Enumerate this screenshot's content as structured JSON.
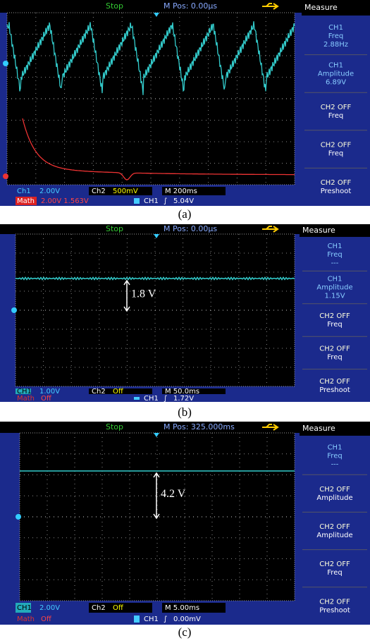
{
  "panels": [
    {
      "label": "(a)",
      "top_bar": {
        "status": "Stop",
        "mpos": "M Pos: 0.00µs"
      },
      "bottom": {
        "ch1": "Ch1",
        "ch1_scale": "2.00V",
        "ch2": "Ch2",
        "ch2_scale": "500mV",
        "time": "M 200ms",
        "math": "Math",
        "math_value": "2.00V 1.563V",
        "trig_src": "CH1",
        "trig_level": "5.04V"
      },
      "menu": {
        "title": "Measure",
        "items": [
          [
            "CH1",
            "Freq",
            "2.88Hz"
          ],
          [
            "CH1",
            "Amplitude",
            "6.89V"
          ],
          [
            "CH2  OFF",
            "Freq"
          ],
          [
            "CH2  OFF",
            "Freq"
          ],
          [
            "CH2  OFF",
            "Preshoot"
          ]
        ]
      }
    },
    {
      "label": "(b)",
      "top_bar": {
        "status": "Stop",
        "mpos": "M Pos: 0.00µs"
      },
      "bottom": {
        "ch1": "CH1",
        "ch1_scale": "1.00V",
        "ch2": "Ch2",
        "ch2_scale": "Off",
        "time": "M 50.0ms",
        "math": "Math",
        "math_value": "Off",
        "trig_src": "CH1",
        "trig_level": "1.72V"
      },
      "menu": {
        "title": "Measure",
        "items": [
          [
            "CH1",
            "Freq",
            "---"
          ],
          [
            "CH1",
            "Amplitude",
            "1.15V"
          ],
          [
            "CH2  OFF",
            "Freq"
          ],
          [
            "CH2  OFF",
            "Freq"
          ],
          [
            "CH2  OFF",
            "Preshoot"
          ]
        ]
      },
      "annotation": "1.8 V"
    },
    {
      "label": "(c)",
      "top_bar": {
        "status": "Stop",
        "mpos": "M Pos: 325.000ms"
      },
      "bottom": {
        "ch1": "CH1",
        "ch1_scale": "2.00V",
        "ch2": "Ch2",
        "ch2_scale": "Off",
        "time": "M 5.00ms",
        "math": "Math",
        "math_value": "Off",
        "trig_src": "CH1",
        "trig_level": "0.00mV"
      },
      "menu": {
        "title": "Measure",
        "items": [
          [
            "CH1",
            "Freq",
            "---"
          ],
          [
            "CH2  OFF",
            "Amplitude"
          ],
          [
            "CH2  OFF",
            "Amplitude"
          ],
          [
            "CH2  OFF",
            "Freq"
          ],
          [
            "CH2  OFF",
            "Preshoot"
          ]
        ]
      },
      "annotation": "4.2 V"
    }
  ]
}
